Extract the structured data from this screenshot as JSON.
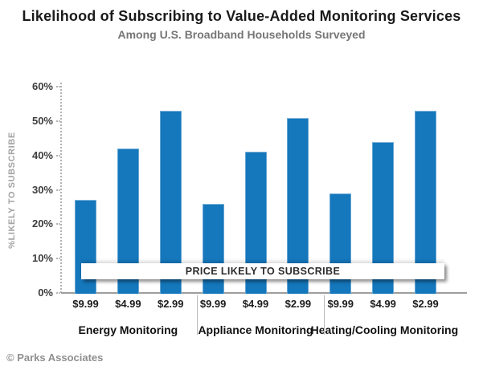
{
  "header": {
    "title": "Likelihood of Subscribing to Value-Added Monitoring Services",
    "subtitle": "Among U.S. Broadband Households Surveyed"
  },
  "footer": {
    "copyright": "© Parks Associates"
  },
  "colors": {
    "bar_fill": "#1577BC",
    "axis_gray": "#9E9E9E",
    "title_text": "#1A1A1A",
    "subtitle_text": "#767676"
  },
  "chart_data": {
    "type": "bar",
    "title": "Likelihood of Subscribing to Value-Added Monitoring Services",
    "subtitle": "Among U.S. Broadband Households Surveyed",
    "xlabel": "",
    "ylabel": "%LIKELY TO SUBSCRIBE",
    "ylim": [
      0,
      60
    ],
    "y_ticks": [
      "0%",
      "10%",
      "20%",
      "30%",
      "40%",
      "50%",
      "60%"
    ],
    "grid": false,
    "legend_position": "none",
    "bar_color": "#1577BC",
    "categories": [
      "$9.99",
      "$4.99",
      "$2.99"
    ],
    "groups": [
      {
        "name": "Energy Monitoring",
        "values": [
          27,
          42,
          53
        ]
      },
      {
        "name": "Appliance Monitoring",
        "values": [
          26,
          41,
          51
        ]
      },
      {
        "name": "Heating/Cooling Monitoring",
        "values": [
          29,
          44,
          53
        ]
      }
    ],
    "annotation": "PRICE LIKELY TO SUBSCRIBE"
  }
}
